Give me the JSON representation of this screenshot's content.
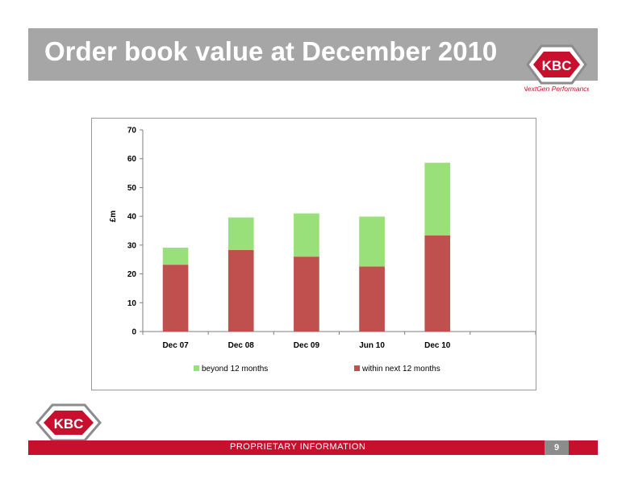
{
  "slide": {
    "title": "Order book value at December 2010",
    "footer_text": "PROPRIETARY INFORMATION",
    "page_number": "9"
  },
  "logo": {
    "text": "KBC",
    "tagline": "NextGen Performance"
  },
  "colors": {
    "title_bar": "#a6a6a6",
    "footer_bar": "#c8102e",
    "within_series": "#c0504d",
    "beyond_series": "#99e07a"
  },
  "chart_data": {
    "type": "bar",
    "stacked": true,
    "categories": [
      "Dec 07",
      "Dec 08",
      "Dec 09",
      "Jun 10",
      "Dec 10",
      ""
    ],
    "series": [
      {
        "name": "within next 12 months",
        "values": [
          23.2,
          28.3,
          26.0,
          22.6,
          33.4,
          null
        ],
        "color": "#c0504d"
      },
      {
        "name": "beyond 12 months",
        "values": [
          5.9,
          11.3,
          15.0,
          17.3,
          25.2,
          null
        ],
        "color": "#99e07a"
      }
    ],
    "ylabel": "£m",
    "ylim": [
      0,
      70
    ],
    "yticks": [
      0,
      10,
      20,
      30,
      40,
      50,
      60,
      70
    ],
    "legend_placement": "bottom",
    "legend_order": [
      "beyond 12 months",
      "within next 12 months"
    ],
    "grid": false
  }
}
